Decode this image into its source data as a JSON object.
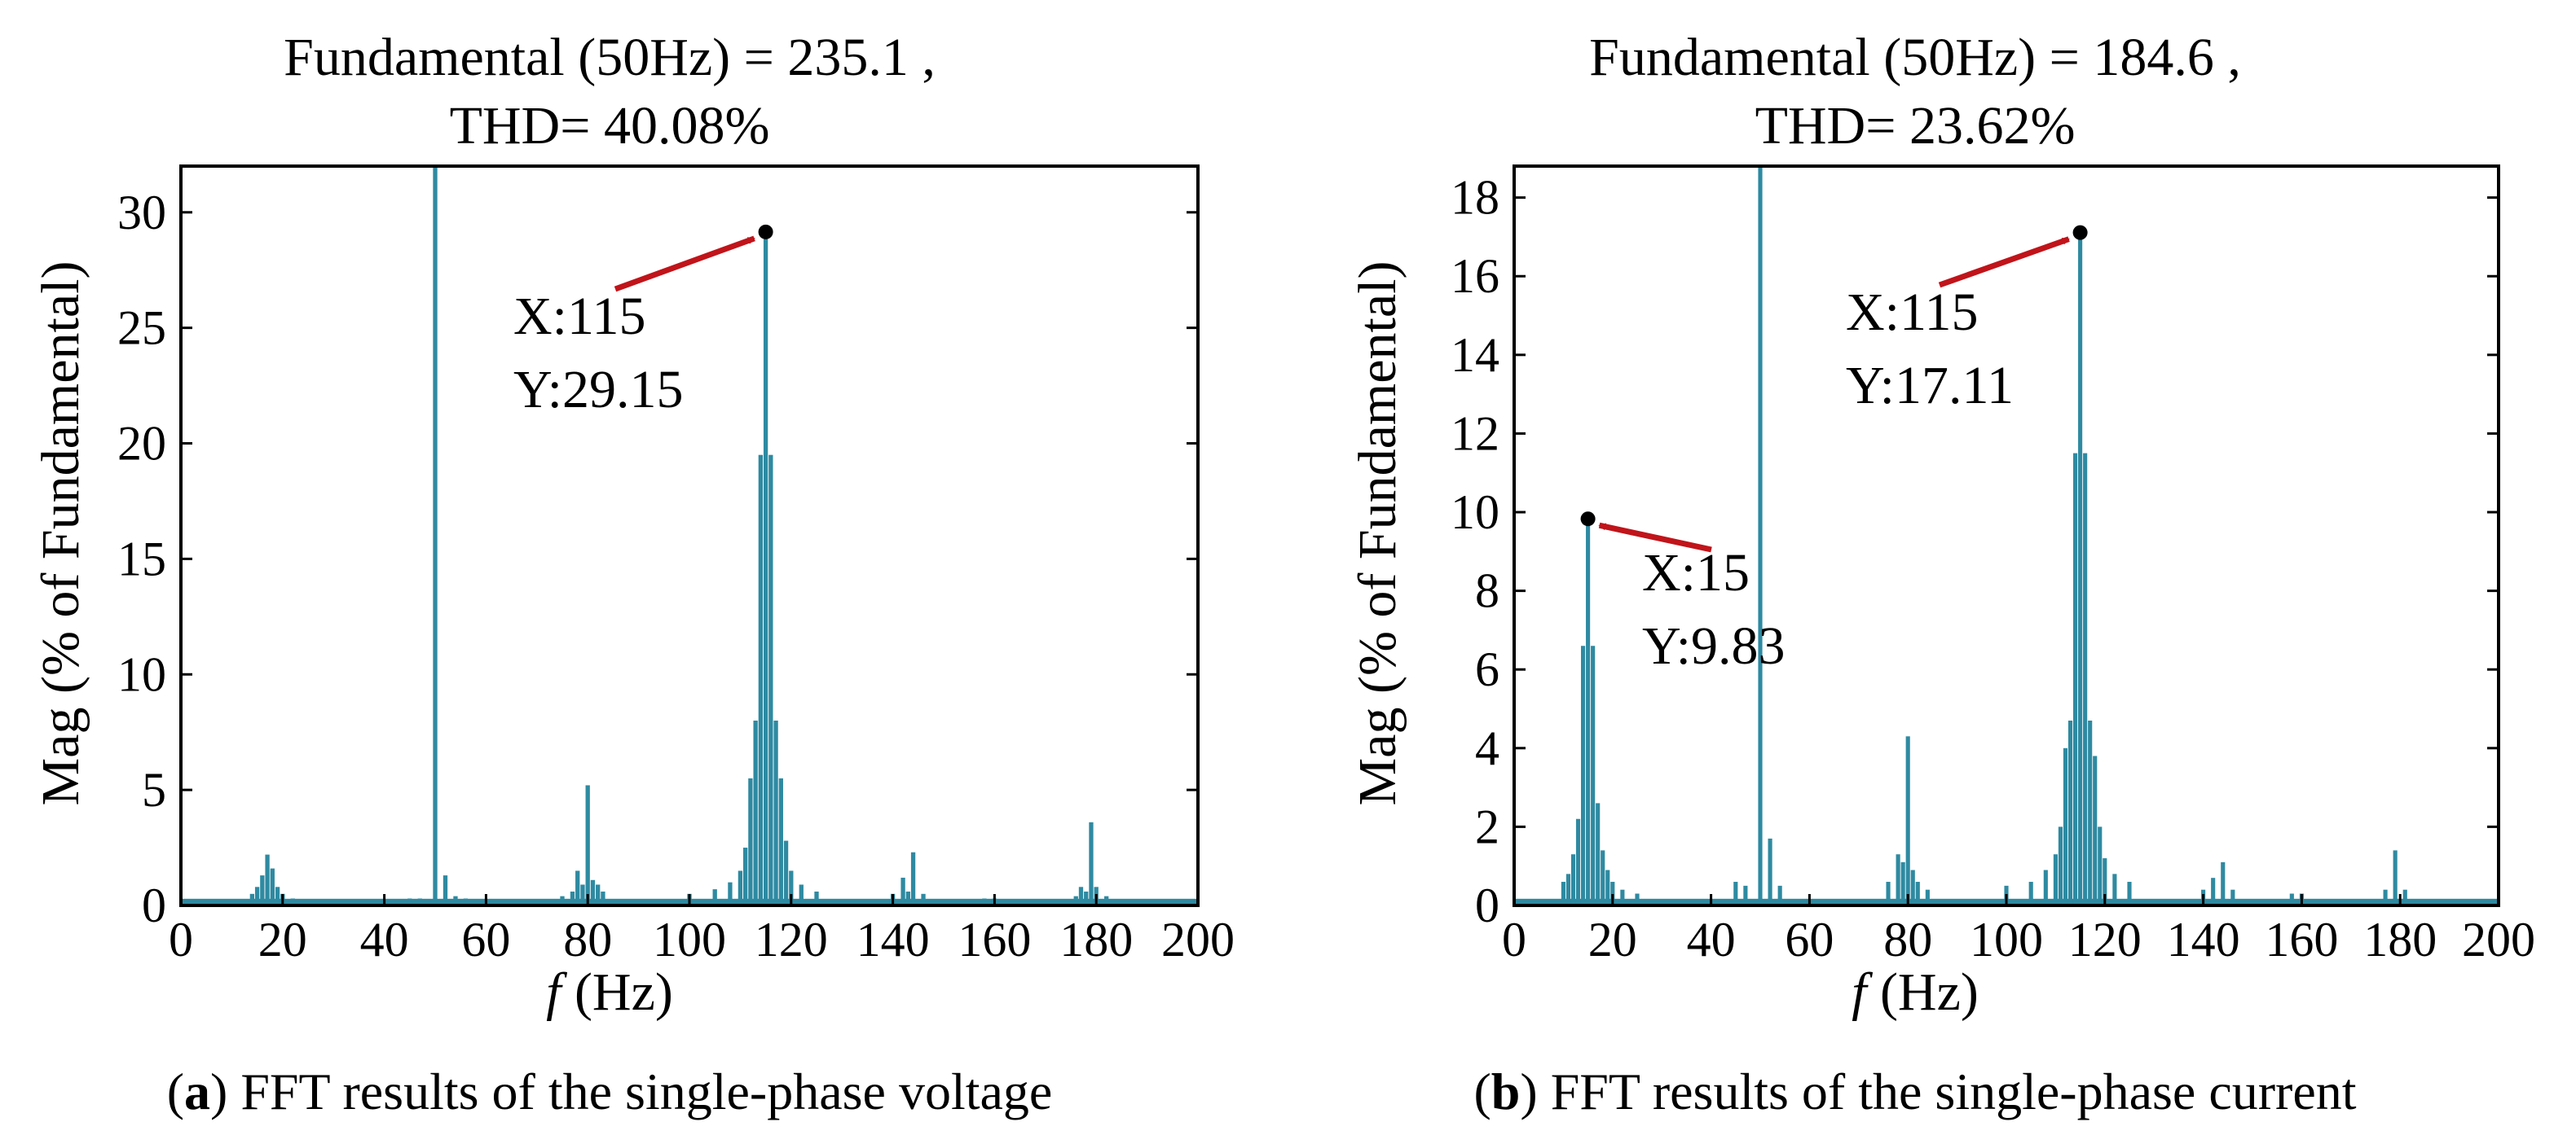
{
  "colors": {
    "spectrum": "#2e8aa1",
    "arrow": "#c0141a",
    "marker": "#000000",
    "axis": "#000000"
  },
  "chart_data": [
    {
      "type": "bar",
      "panel": "a",
      "title_line1": "Fundamental (50Hz) = 235.1 ,",
      "title_line2": "THD= 40.08%",
      "xlabel_italic": "f",
      "xlabel_rest": " (Hz)",
      "ylabel": "Mag (% of Fundamental)",
      "xlim": [
        0,
        200
      ],
      "ylim": [
        0,
        32
      ],
      "xticks": [
        "0",
        "20",
        "40",
        "60",
        "80",
        "100",
        "120",
        "140",
        "160",
        "180",
        "200"
      ],
      "xtick_values": [
        0,
        20,
        40,
        60,
        80,
        100,
        120,
        140,
        160,
        180,
        200
      ],
      "yticks": [
        "0",
        "5",
        "10",
        "15",
        "20",
        "25",
        "30"
      ],
      "ytick_values": [
        0,
        5,
        10,
        15,
        20,
        25,
        30
      ],
      "caption_bold": "a",
      "caption_rest": ") FFT results of the single-phase voltage",
      "annotations": [
        {
          "x": 115,
          "y": 29.15,
          "x_label": "X:115",
          "y_label": "Y:29.15"
        }
      ],
      "peaks": [
        [
          14,
          0.5
        ],
        [
          15,
          0.8
        ],
        [
          16,
          1.3
        ],
        [
          17,
          2.2
        ],
        [
          18,
          1.6
        ],
        [
          19,
          0.8
        ],
        [
          20,
          0.5
        ],
        [
          22,
          0.3
        ],
        [
          45,
          0.3
        ],
        [
          47,
          0.3
        ],
        [
          50,
          32
        ],
        [
          52,
          1.3
        ],
        [
          54,
          0.4
        ],
        [
          56,
          0.3
        ],
        [
          75,
          0.4
        ],
        [
          77,
          0.6
        ],
        [
          78,
          1.5
        ],
        [
          79,
          0.9
        ],
        [
          80,
          5.2
        ],
        [
          81,
          1.1
        ],
        [
          82,
          0.9
        ],
        [
          83,
          0.6
        ],
        [
          100,
          0.5
        ],
        [
          105,
          0.7
        ],
        [
          108,
          1.0
        ],
        [
          110,
          1.5
        ],
        [
          111,
          2.5
        ],
        [
          112,
          5.5
        ],
        [
          113,
          8.0
        ],
        [
          114,
          19.5
        ],
        [
          115,
          29.15
        ],
        [
          116,
          19.5
        ],
        [
          117,
          8.0
        ],
        [
          118,
          5.5
        ],
        [
          119,
          2.8
        ],
        [
          120,
          1.5
        ],
        [
          122,
          0.9
        ],
        [
          125,
          0.6
        ],
        [
          140,
          0.5
        ],
        [
          142,
          1.2
        ],
        [
          143,
          0.6
        ],
        [
          144,
          2.3
        ],
        [
          146,
          0.5
        ],
        [
          158,
          0.3
        ],
        [
          160,
          0.3
        ],
        [
          176,
          0.4
        ],
        [
          177,
          0.8
        ],
        [
          178,
          0.6
        ],
        [
          179,
          3.6
        ],
        [
          180,
          0.8
        ],
        [
          182,
          0.4
        ]
      ]
    },
    {
      "type": "bar",
      "panel": "b",
      "title_line1": "Fundamental (50Hz) = 184.6 ,",
      "title_line2": "THD= 23.62%",
      "xlabel_italic": "f",
      "xlabel_rest": " (Hz)",
      "ylabel": "Mag (% of Fundamental)",
      "xlim": [
        0,
        200
      ],
      "ylim": [
        0,
        18.8
      ],
      "xticks": [
        "0",
        "20",
        "40",
        "60",
        "80",
        "100",
        "120",
        "140",
        "160",
        "180",
        "200"
      ],
      "xtick_values": [
        0,
        20,
        40,
        60,
        80,
        100,
        120,
        140,
        160,
        180,
        200
      ],
      "yticks": [
        "0",
        "2",
        "4",
        "6",
        "8",
        "10",
        "12",
        "14",
        "16",
        "18"
      ],
      "ytick_values": [
        0,
        2,
        4,
        6,
        8,
        10,
        12,
        14,
        16,
        18
      ],
      "caption_bold": "b",
      "caption_rest": ") FFT results of the single-phase current",
      "annotations": [
        {
          "x": 15,
          "y": 9.83,
          "x_label": "X:15",
          "y_label": "Y:9.83"
        },
        {
          "x": 115,
          "y": 17.11,
          "x_label": "X:115",
          "y_label": "Y:17.11"
        }
      ],
      "peaks": [
        [
          10,
          0.6
        ],
        [
          11,
          0.8
        ],
        [
          12,
          1.3
        ],
        [
          13,
          2.2
        ],
        [
          14,
          6.6
        ],
        [
          15,
          9.83
        ],
        [
          16,
          6.6
        ],
        [
          17,
          2.6
        ],
        [
          18,
          1.4
        ],
        [
          19,
          0.9
        ],
        [
          20,
          0.6
        ],
        [
          22,
          0.4
        ],
        [
          25,
          0.3
        ],
        [
          45,
          0.6
        ],
        [
          47,
          0.5
        ],
        [
          50,
          18.8
        ],
        [
          52,
          1.7
        ],
        [
          54,
          0.5
        ],
        [
          76,
          0.6
        ],
        [
          78,
          1.3
        ],
        [
          79,
          1.1
        ],
        [
          80,
          4.3
        ],
        [
          81,
          0.9
        ],
        [
          82,
          0.6
        ],
        [
          84,
          0.4
        ],
        [
          100,
          0.5
        ],
        [
          105,
          0.6
        ],
        [
          108,
          0.9
        ],
        [
          110,
          1.3
        ],
        [
          111,
          2.0
        ],
        [
          112,
          4.0
        ],
        [
          113,
          4.7
        ],
        [
          114,
          11.5
        ],
        [
          115,
          17.11
        ],
        [
          116,
          11.5
        ],
        [
          117,
          4.7
        ],
        [
          118,
          3.8
        ],
        [
          119,
          2.0
        ],
        [
          120,
          1.2
        ],
        [
          122,
          0.8
        ],
        [
          125,
          0.6
        ],
        [
          140,
          0.4
        ],
        [
          142,
          0.7
        ],
        [
          144,
          1.1
        ],
        [
          146,
          0.4
        ],
        [
          158,
          0.3
        ],
        [
          160,
          0.3
        ],
        [
          177,
          0.4
        ],
        [
          179,
          1.4
        ],
        [
          181,
          0.4
        ]
      ]
    }
  ]
}
